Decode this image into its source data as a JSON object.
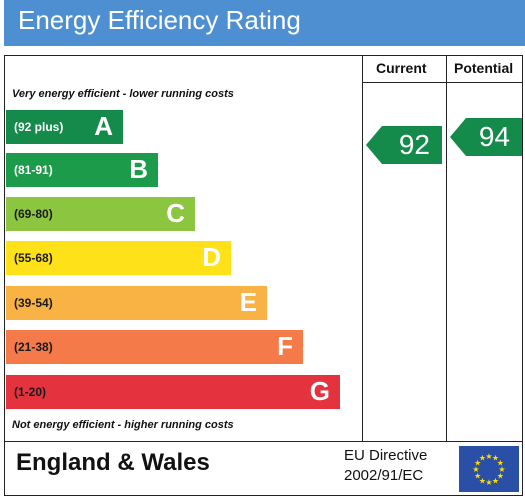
{
  "title": "Energy Efficiency Rating",
  "columns": {
    "current": "Current",
    "potential": "Potential"
  },
  "top_note": "Very energy efficient - lower running costs",
  "bottom_note": "Not energy efficient - higher running costs",
  "bands": [
    {
      "range": "(92 plus)",
      "letter": "A",
      "color": "#148a4b",
      "text_color": "#ffffff"
    },
    {
      "range": "(81-91)",
      "letter": "B",
      "color": "#1c9b4a",
      "text_color": "#ffffff"
    },
    {
      "range": "(69-80)",
      "letter": "C",
      "color": "#8cc540",
      "text_color": "#1a1a1a"
    },
    {
      "range": "(55-68)",
      "letter": "D",
      "color": "#ffe11a",
      "text_color": "#1a1a1a"
    },
    {
      "range": "(39-54)",
      "letter": "E",
      "color": "#f9b244",
      "text_color": "#1a1a1a"
    },
    {
      "range": "(21-38)",
      "letter": "F",
      "color": "#f47a4a",
      "text_color": "#1a1a1a"
    },
    {
      "range": "(1-20)",
      "letter": "G",
      "color": "#e4323e",
      "text_color": "#1a1a1a"
    }
  ],
  "current_rating": {
    "value": "92",
    "color": "#148a4b"
  },
  "potential_rating": {
    "value": "94",
    "color": "#148a4b"
  },
  "footer": {
    "region": "England & Wales",
    "directive_line1": "EU Directive",
    "directive_line2": "2002/91/EC"
  },
  "colors": {
    "header": "#4d8fd1",
    "eu_flag": "#2a4fa6",
    "eu_stars": "#ffdd00"
  }
}
